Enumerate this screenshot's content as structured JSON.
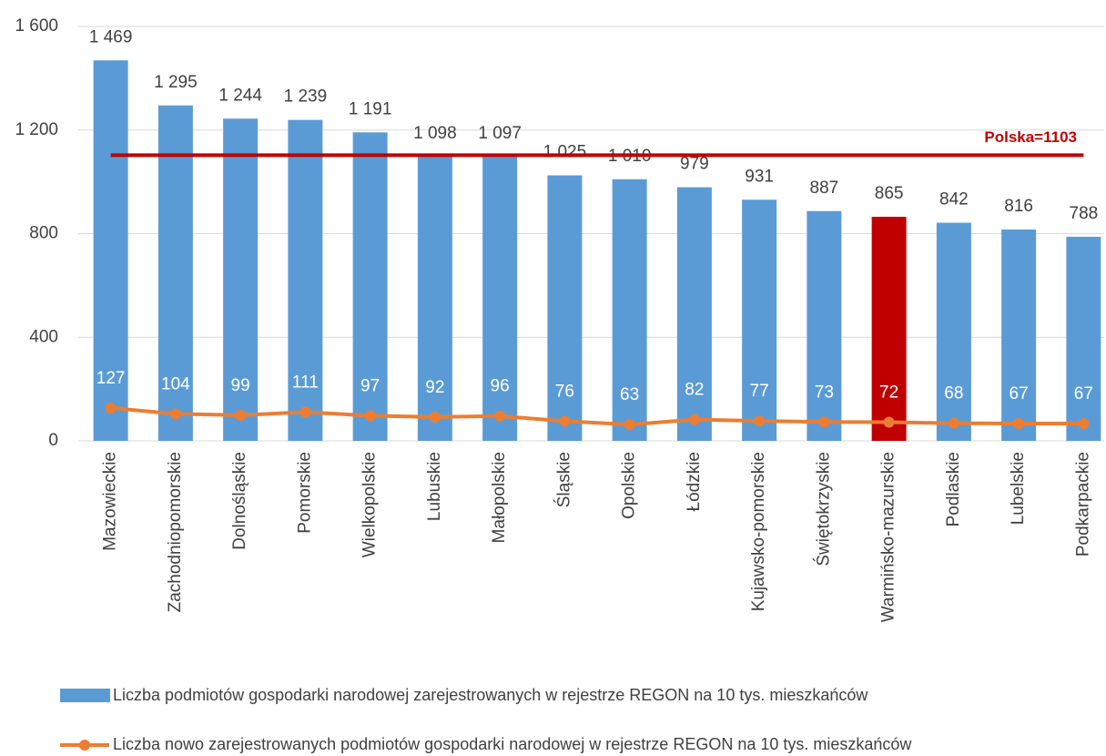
{
  "chart_data": {
    "type": "bar-line",
    "categories": [
      "Mazowieckie",
      "Zachodniopomorskie",
      "Dolnośląskie",
      "Pomorskie",
      "Wielkopolskie",
      "Lubuskie",
      "Małopolskie",
      "Śląskie",
      "Opolskie",
      "Łódzkie",
      "Kujawsko-pomorskie",
      "Świętokrzyskie",
      "Warmińsko-mazurskie",
      "Podlaskie",
      "Lubelskie",
      "Podkarpackie"
    ],
    "series": [
      {
        "name": "Liczba podmiotów gospodarki narodowej zarejestrowanych w rejestrze REGON na 10 tys. mieszkańców",
        "type": "bar",
        "color": "#5b9bd5",
        "colors": [
          "#5b9bd5",
          "#5b9bd5",
          "#5b9bd5",
          "#5b9bd5",
          "#5b9bd5",
          "#5b9bd5",
          "#5b9bd5",
          "#5b9bd5",
          "#5b9bd5",
          "#5b9bd5",
          "#5b9bd5",
          "#5b9bd5",
          "#c00000",
          "#5b9bd5",
          "#5b9bd5",
          "#5b9bd5"
        ],
        "values": [
          1469,
          1295,
          1244,
          1239,
          1191,
          1098,
          1097,
          1025,
          1010,
          979,
          931,
          887,
          865,
          842,
          816,
          788
        ],
        "value_labels": [
          "1 469",
          "1 295",
          "1 244",
          "1 239",
          "1 191",
          "1 098",
          "1 097",
          "1 025",
          "1 010",
          "979",
          "931",
          "887",
          "865",
          "842",
          "816",
          "788"
        ]
      },
      {
        "name": "Liczba nowo zarejestrowanych podmiotów gospodarki narodowej w rejestrze REGON na 10 tys. mieszkańców",
        "type": "line",
        "color": "#ed7d31",
        "values": [
          127,
          104,
          99,
          111,
          97,
          92,
          96,
          76,
          63,
          82,
          77,
          73,
          72,
          68,
          67,
          67
        ]
      }
    ],
    "reference": {
      "value": 1103,
      "label": "Polska=1103",
      "color": "#c00000"
    },
    "ylim": [
      0,
      1600
    ],
    "yticks": [
      0,
      400,
      800,
      {
        "value": 1200,
        "label": "1 200"
      },
      {
        "value": 1600,
        "label": "1 600"
      }
    ],
    "grid": true
  }
}
